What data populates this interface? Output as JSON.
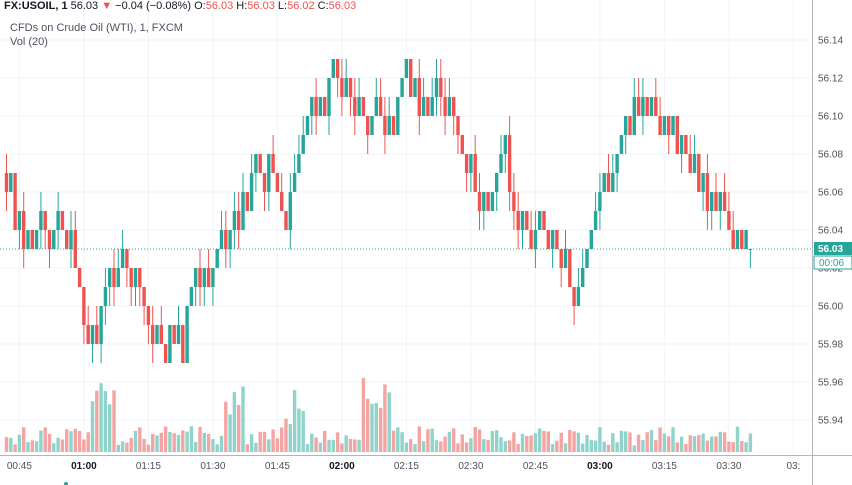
{
  "header": {
    "symbol": "FX:USOIL, 1",
    "last": "56.03",
    "change": "−0.04 (−0.08%)",
    "o_label": "O:",
    "o": "56.03",
    "h_label": "H:",
    "h": "56.03",
    "l_label": "L:",
    "l": "56.02",
    "c_label": "C:",
    "c": "56.03",
    "title": "CFDs on Crude Oil (WTI), 1, FXCM",
    "volume": "Vol (20)"
  },
  "price_badge": "56.03",
  "countdown_badge": "00:06",
  "colors": {
    "up": "#26a69a",
    "down": "#ef5350",
    "up_vol": "#8fd3cb",
    "down_vol": "#f4a4a2",
    "grid": "#f0f3fa"
  },
  "chart_data": {
    "type": "candlestick",
    "title": "CFDs on Crude Oil (WTI), 1, FXCM",
    "y_ticks": [
      "56.14",
      "56.12",
      "56.10",
      "56.08",
      "56.06",
      "56.04",
      "56.02",
      "56.00",
      "55.98",
      "55.96",
      "55.94"
    ],
    "y_tick_values": [
      56.14,
      56.12,
      56.1,
      56.08,
      56.06,
      56.04,
      56.02,
      56.0,
      55.98,
      55.96,
      55.94
    ],
    "ylim": [
      55.925,
      56.155
    ],
    "x_ticks": [
      {
        "label": "00:45",
        "index": 3,
        "bold": false
      },
      {
        "label": "01:00",
        "index": 18,
        "bold": true
      },
      {
        "label": "01:15",
        "index": 33,
        "bold": false
      },
      {
        "label": "01:30",
        "index": 48,
        "bold": false
      },
      {
        "label": "01:45",
        "index": 63,
        "bold": false
      },
      {
        "label": "02:00",
        "index": 78,
        "bold": true
      },
      {
        "label": "02:15",
        "index": 93,
        "bold": false
      },
      {
        "label": "02:30",
        "index": 108,
        "bold": false
      },
      {
        "label": "02:45",
        "index": 123,
        "bold": false
      },
      {
        "label": "03:00",
        "index": 138,
        "bold": true
      },
      {
        "label": "03:15",
        "index": 153,
        "bold": false
      },
      {
        "label": "03:30",
        "index": 168,
        "bold": false
      },
      {
        "label": "03:",
        "index": 183,
        "bold": false
      }
    ],
    "last_price": 56.03,
    "candle_count": 174
  }
}
